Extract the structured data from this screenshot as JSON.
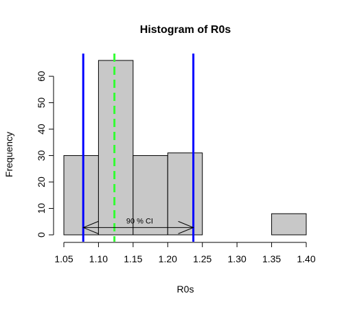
{
  "chart_data": {
    "type": "bar",
    "title": "Histogram of R0s",
    "xlabel": "R0s",
    "ylabel": "Frequency",
    "bins": [
      {
        "start": 1.05,
        "end": 1.1,
        "count": 30
      },
      {
        "start": 1.1,
        "end": 1.15,
        "count": 66
      },
      {
        "start": 1.15,
        "end": 1.2,
        "count": 30
      },
      {
        "start": 1.2,
        "end": 1.25,
        "count": 31
      },
      {
        "start": 1.25,
        "end": 1.3,
        "count": 0
      },
      {
        "start": 1.3,
        "end": 1.35,
        "count": 0
      },
      {
        "start": 1.35,
        "end": 1.4,
        "count": 8
      }
    ],
    "xlim": [
      1.05,
      1.4
    ],
    "ylim": [
      0,
      66
    ],
    "x_ticks": [
      "1.05",
      "1.10",
      "1.15",
      "1.20",
      "1.25",
      "1.30",
      "1.35",
      "1.40"
    ],
    "y_ticks": [
      "0",
      "10",
      "20",
      "30",
      "40",
      "50",
      "60"
    ],
    "grid": false,
    "bar_color": "#c8c8c8",
    "bar_border_color": "#000000",
    "reference_lines": [
      {
        "x": 1.078,
        "style": "solid",
        "color": "#0000ff"
      },
      {
        "x": 1.237,
        "style": "solid",
        "color": "#0000ff"
      },
      {
        "x": 1.123,
        "style": "dashed",
        "color": "#33ff33"
      }
    ],
    "interval_annotation": {
      "from": 1.078,
      "to": 1.237,
      "y": 2.5,
      "label": "90 % CI"
    }
  }
}
